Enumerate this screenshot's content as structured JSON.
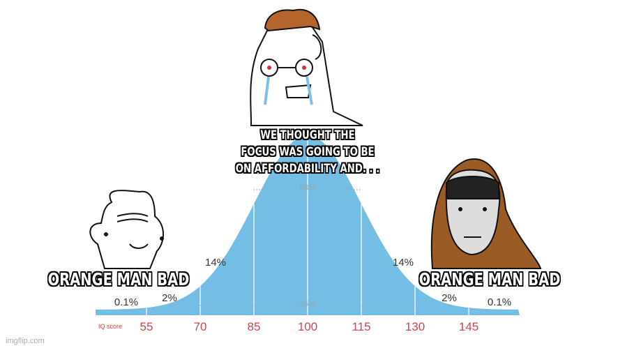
{
  "captions": {
    "top": "WE THOUGHT THE\nFOCUS WAS GOING TO BE\nON AFFORDABILITY AND. . .",
    "left": "ORANGE MAN BAD",
    "right": "ORANGE MAN BAD"
  },
  "chart": {
    "axis_label": "IQ score",
    "ticks": [
      "55",
      "70",
      "85",
      "100",
      "115",
      "130",
      "145"
    ],
    "inner_percent": "68%",
    "outer_percent": "95%",
    "left_14": "14%",
    "right_14": "14%",
    "left_2": "2%",
    "right_2": "2%",
    "left_01": "0.1%",
    "right_01": "0.1%",
    "fill_color": "#74bde4",
    "tick_color": "#d0454c"
  },
  "watermark": "imgflip.com"
}
